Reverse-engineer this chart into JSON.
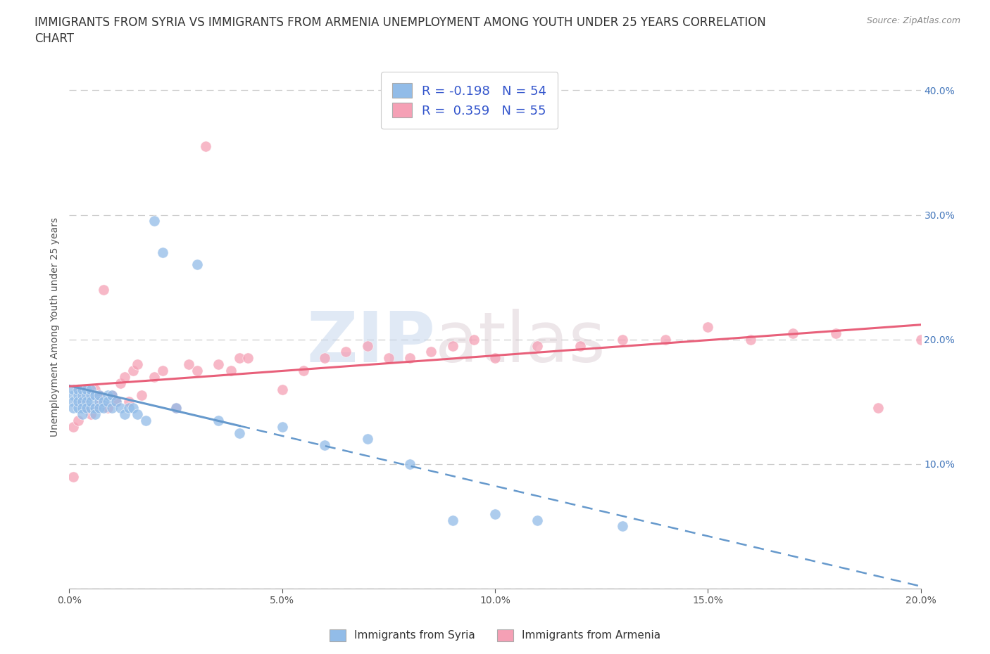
{
  "title_line1": "IMMIGRANTS FROM SYRIA VS IMMIGRANTS FROM ARMENIA UNEMPLOYMENT AMONG YOUTH UNDER 25 YEARS CORRELATION",
  "title_line2": "CHART",
  "source": "Source: ZipAtlas.com",
  "ylabel": "Unemployment Among Youth under 25 years",
  "watermark": "ZIPatlas",
  "xlim": [
    0.0,
    0.2
  ],
  "ylim": [
    0.0,
    0.42
  ],
  "xticks": [
    0.0,
    0.05,
    0.1,
    0.15,
    0.2
  ],
  "yticks": [
    0.0,
    0.1,
    0.2,
    0.3,
    0.4
  ],
  "xtick_labels": [
    "0.0%",
    "5.0%",
    "10.0%",
    "15.0%",
    "20.0%"
  ],
  "ytick_labels": [
    "",
    "10.0%",
    "20.0%",
    "30.0%",
    "40.0%"
  ],
  "syria_color": "#92bce8",
  "armenia_color": "#f5a0b5",
  "syria_line_color": "#6699cc",
  "armenia_line_color": "#e8607a",
  "syria_R": -0.198,
  "syria_N": 54,
  "armenia_R": 0.359,
  "armenia_N": 55,
  "legend_label_syria": "Immigrants from Syria",
  "legend_label_armenia": "Immigrants from Armenia",
  "title_fontsize": 12,
  "axis_fontsize": 10,
  "tick_fontsize": 10,
  "tick_color": "#4477bb",
  "legend_fontsize": 13,
  "background_color": "#ffffff",
  "grid_color": "#cccccc",
  "syria_x": [
    0.001,
    0.001,
    0.001,
    0.001,
    0.002,
    0.002,
    0.002,
    0.002,
    0.003,
    0.003,
    0.003,
    0.003,
    0.003,
    0.004,
    0.004,
    0.004,
    0.004,
    0.005,
    0.005,
    0.005,
    0.005,
    0.006,
    0.006,
    0.006,
    0.007,
    0.007,
    0.007,
    0.008,
    0.008,
    0.009,
    0.009,
    0.01,
    0.01,
    0.011,
    0.012,
    0.013,
    0.014,
    0.015,
    0.016,
    0.018,
    0.02,
    0.022,
    0.025,
    0.03,
    0.035,
    0.04,
    0.05,
    0.06,
    0.07,
    0.08,
    0.09,
    0.1,
    0.11,
    0.13
  ],
  "syria_y": [
    0.155,
    0.16,
    0.15,
    0.145,
    0.155,
    0.16,
    0.145,
    0.15,
    0.155,
    0.15,
    0.16,
    0.145,
    0.14,
    0.155,
    0.15,
    0.145,
    0.16,
    0.155,
    0.145,
    0.15,
    0.16,
    0.155,
    0.145,
    0.14,
    0.15,
    0.155,
    0.145,
    0.15,
    0.145,
    0.155,
    0.15,
    0.145,
    0.155,
    0.15,
    0.145,
    0.14,
    0.145,
    0.145,
    0.14,
    0.135,
    0.295,
    0.27,
    0.145,
    0.26,
    0.135,
    0.125,
    0.13,
    0.115,
    0.12,
    0.1,
    0.055,
    0.06,
    0.055,
    0.05
  ],
  "armenia_x": [
    0.001,
    0.001,
    0.002,
    0.002,
    0.003,
    0.003,
    0.004,
    0.004,
    0.005,
    0.005,
    0.006,
    0.006,
    0.007,
    0.007,
    0.008,
    0.009,
    0.01,
    0.011,
    0.012,
    0.013,
    0.014,
    0.015,
    0.016,
    0.017,
    0.02,
    0.022,
    0.025,
    0.028,
    0.03,
    0.032,
    0.035,
    0.038,
    0.04,
    0.042,
    0.05,
    0.055,
    0.06,
    0.065,
    0.07,
    0.075,
    0.08,
    0.085,
    0.09,
    0.095,
    0.1,
    0.11,
    0.12,
    0.13,
    0.14,
    0.15,
    0.16,
    0.17,
    0.18,
    0.19,
    0.2
  ],
  "armenia_y": [
    0.09,
    0.13,
    0.135,
    0.16,
    0.15,
    0.155,
    0.145,
    0.16,
    0.14,
    0.155,
    0.145,
    0.16,
    0.15,
    0.155,
    0.24,
    0.145,
    0.155,
    0.15,
    0.165,
    0.17,
    0.15,
    0.175,
    0.18,
    0.155,
    0.17,
    0.175,
    0.145,
    0.18,
    0.175,
    0.355,
    0.18,
    0.175,
    0.185,
    0.185,
    0.16,
    0.175,
    0.185,
    0.19,
    0.195,
    0.185,
    0.185,
    0.19,
    0.195,
    0.2,
    0.185,
    0.195,
    0.195,
    0.2,
    0.2,
    0.21,
    0.2,
    0.205,
    0.205,
    0.145,
    0.2
  ]
}
